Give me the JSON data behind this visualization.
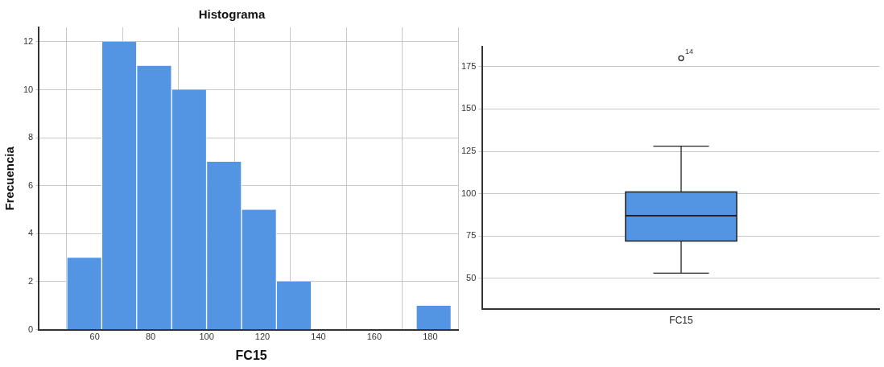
{
  "chart_data": [
    {
      "type": "histogram",
      "title": "Histograma",
      "xlabel": "FC15",
      "ylabel": "Frecuencia",
      "bins": [
        50,
        62.5,
        75,
        87.5,
        100,
        112.5,
        125,
        137.5,
        150,
        162.5,
        175,
        187.5
      ],
      "values": [
        3,
        12,
        11,
        10,
        7,
        5,
        2,
        0,
        0,
        0,
        1
      ],
      "color": "#5495e3",
      "xlim": [
        40,
        192
      ],
      "xticks": [
        60,
        80,
        100,
        120,
        140,
        160,
        180
      ],
      "ylim": [
        0,
        12.6
      ],
      "yticks": [
        0,
        2,
        4,
        6,
        8,
        10,
        12
      ],
      "grid": true,
      "legend": false
    },
    {
      "type": "box",
      "categories": [
        "FC15"
      ],
      "color": "#5495e3",
      "boxes": [
        {
          "low": 53,
          "q1": 72,
          "median": 87,
          "q3": 101,
          "high": 128,
          "outliers": [
            180
          ]
        }
      ],
      "ylim": [
        32,
        187
      ],
      "yticks": [
        50,
        75,
        100,
        125,
        150,
        175
      ],
      "grid": "y",
      "legend": false,
      "annotations": [
        "14"
      ]
    }
  ]
}
